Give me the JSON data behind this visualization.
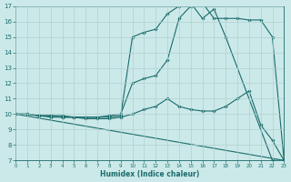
{
  "xlabel": "Humidex (Indice chaleur)",
  "bg_color": "#cce9e9",
  "grid_color": "#b0d0d0",
  "line_color": "#1a6b6b",
  "xlim": [
    0,
    23
  ],
  "ylim": [
    7,
    17
  ],
  "xticks": [
    0,
    1,
    2,
    3,
    4,
    5,
    6,
    7,
    8,
    9,
    10,
    11,
    12,
    13,
    14,
    15,
    16,
    17,
    18,
    19,
    20,
    21,
    22,
    23
  ],
  "yticks": [
    7,
    8,
    9,
    10,
    11,
    12,
    13,
    14,
    15,
    16,
    17
  ],
  "lines": [
    {
      "x": [
        0,
        1,
        2,
        3,
        4,
        5,
        6,
        7,
        8,
        9,
        10,
        11,
        12,
        13,
        14,
        15,
        16,
        17,
        18,
        22,
        23
      ],
      "y": [
        10,
        10,
        9.9,
        9.9,
        9.8,
        9.8,
        9.8,
        9.8,
        9.8,
        9.9,
        15.0,
        15.3,
        15.5,
        16.5,
        17.0,
        17.2,
        16.2,
        16.8,
        15.0,
        7.0,
        7.0
      ]
    },
    {
      "x": [
        0,
        1,
        2,
        3,
        4,
        5,
        6,
        7,
        8,
        9,
        10,
        11,
        12,
        13,
        14,
        15,
        16,
        17,
        18,
        19,
        20,
        21,
        22,
        23
      ],
      "y": [
        10,
        10,
        9.9,
        9.9,
        9.9,
        9.8,
        9.8,
        9.8,
        9.9,
        10.0,
        12.0,
        12.3,
        12.5,
        13.5,
        16.2,
        17.0,
        17.2,
        16.2,
        16.2,
        16.2,
        16.1,
        16.1,
        15.0,
        7.0
      ]
    },
    {
      "x": [
        0,
        1,
        2,
        3,
        4,
        5,
        6,
        7,
        8,
        9,
        10,
        11,
        12,
        13,
        14,
        15,
        16,
        17,
        18,
        19,
        20,
        21,
        22,
        23
      ],
      "y": [
        10,
        10,
        9.9,
        9.8,
        9.8,
        9.8,
        9.7,
        9.7,
        9.7,
        9.8,
        10.0,
        10.3,
        10.5,
        11.0,
        10.5,
        10.3,
        10.2,
        10.2,
        10.5,
        11.0,
        11.5,
        9.3,
        8.3,
        7.0
      ]
    },
    {
      "x": [
        0,
        23
      ],
      "y": [
        10,
        7
      ]
    }
  ]
}
